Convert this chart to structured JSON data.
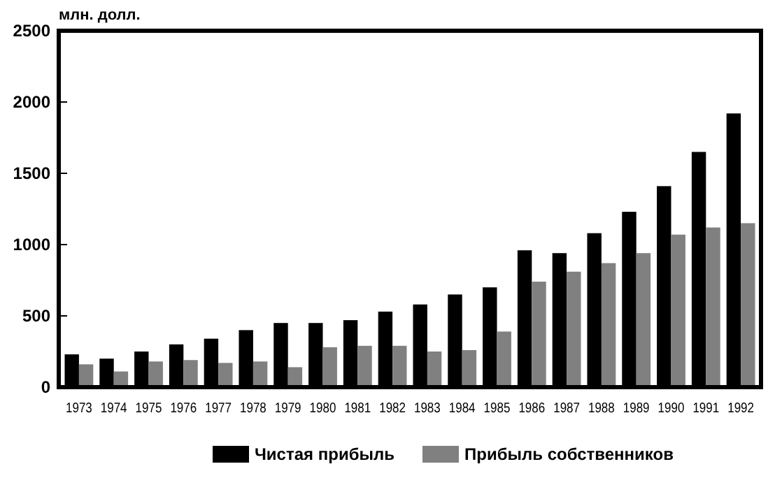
{
  "chart_data": {
    "type": "bar",
    "ylabel": "млн. долл.",
    "categories": [
      "1973",
      "1974",
      "1975",
      "1976",
      "1977",
      "1978",
      "1979",
      "1980",
      "1981",
      "1982",
      "1983",
      "1984",
      "1985",
      "1986",
      "1987",
      "1988",
      "1989",
      "1990",
      "1991",
      "1992"
    ],
    "series": [
      {
        "name": "Чистая прибыль",
        "color": "#000000",
        "values": [
          230,
          200,
          250,
          300,
          340,
          400,
          450,
          450,
          470,
          530,
          580,
          650,
          700,
          960,
          940,
          1080,
          1230,
          1410,
          1650,
          1920
        ]
      },
      {
        "name": "Прибыль собственников",
        "color": "#808080",
        "values": [
          160,
          110,
          180,
          190,
          170,
          180,
          140,
          280,
          290,
          290,
          250,
          260,
          390,
          740,
          810,
          870,
          940,
          1070,
          1120,
          1150
        ]
      }
    ],
    "ylim": [
      0,
      2500
    ],
    "yticks": [
      0,
      500,
      1000,
      1500,
      2000,
      2500
    ],
    "grid": false,
    "legend": "bottom"
  }
}
